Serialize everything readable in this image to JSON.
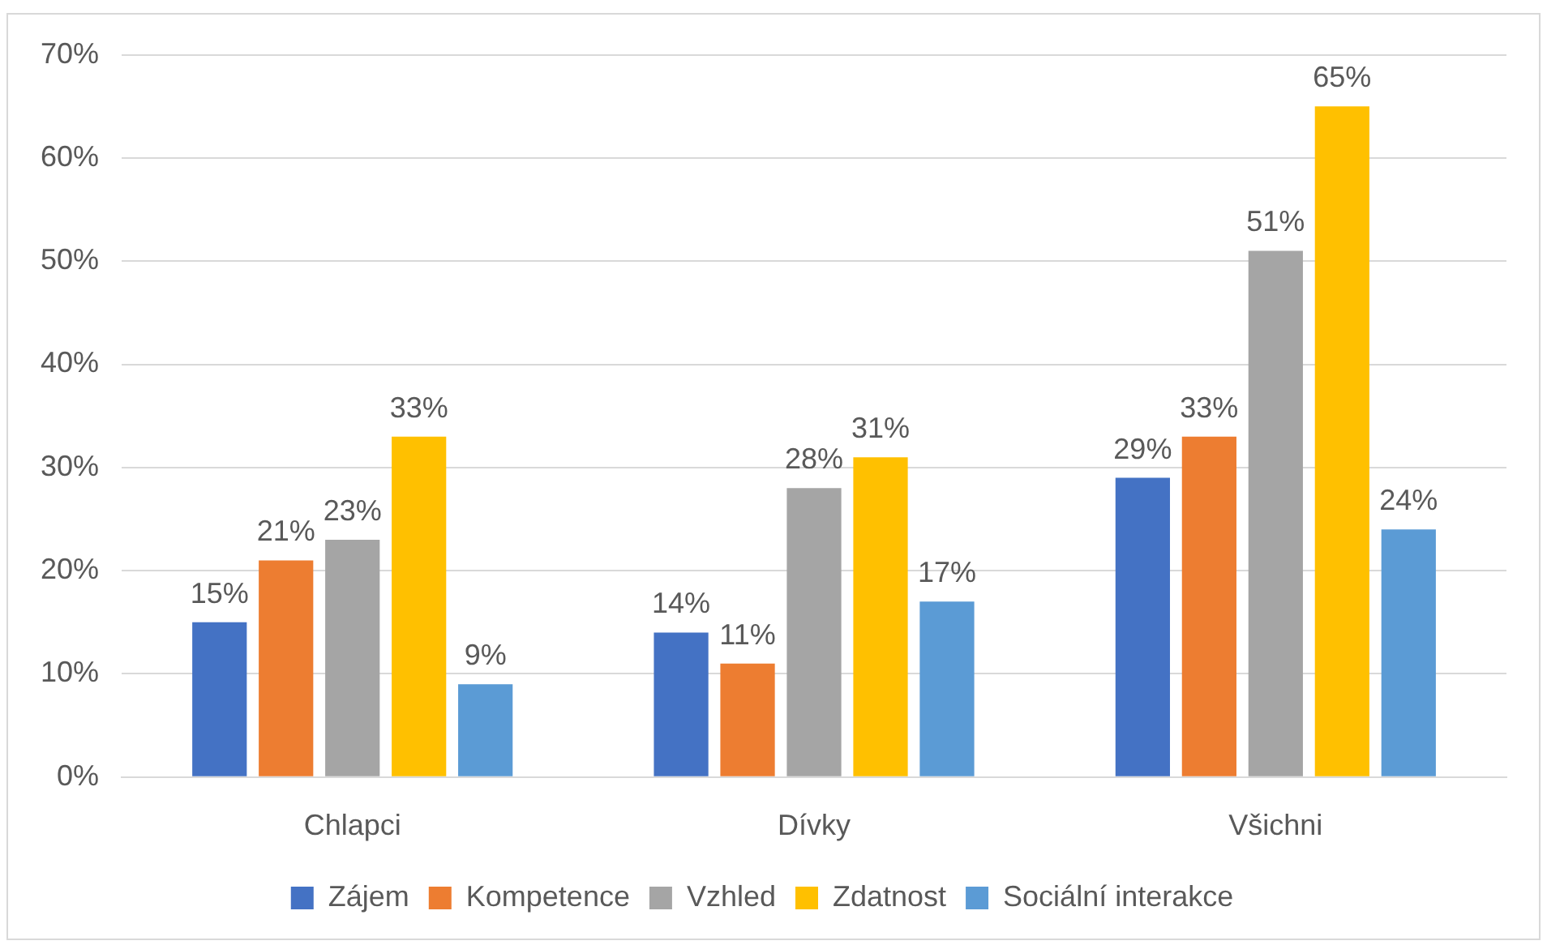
{
  "chart_data": {
    "type": "bar",
    "categories": [
      "Chlapci",
      "Dívky",
      "Všichni"
    ],
    "series": [
      {
        "name": "Zájem",
        "color": "#4472c4",
        "values": [
          15,
          14,
          29
        ],
        "value_labels": [
          "15%",
          "14%",
          "29%"
        ]
      },
      {
        "name": "Kompetence",
        "color": "#ed7d31",
        "values": [
          21,
          11,
          33
        ],
        "value_labels": [
          "21%",
          "11%",
          "33%"
        ]
      },
      {
        "name": "Vzhled",
        "color": "#a5a5a5",
        "values": [
          23,
          28,
          51
        ],
        "value_labels": [
          "23%",
          "28%",
          "51%"
        ]
      },
      {
        "name": "Zdatnost",
        "color": "#ffc000",
        "values": [
          33,
          31,
          65
        ],
        "value_labels": [
          "33%",
          "31%",
          "65%"
        ]
      },
      {
        "name": "Sociální interakce",
        "color": "#5b9bd5",
        "values": [
          9,
          17,
          24
        ],
        "value_labels": [
          "9%",
          "17%",
          "24%"
        ]
      }
    ],
    "ylim": [
      0,
      70
    ],
    "yticks": [
      {
        "value": 0,
        "label": "0%"
      },
      {
        "value": 10,
        "label": "10%"
      },
      {
        "value": 20,
        "label": "20%"
      },
      {
        "value": 30,
        "label": "30%"
      },
      {
        "value": 40,
        "label": "40%"
      },
      {
        "value": 50,
        "label": "50%"
      },
      {
        "value": 60,
        "label": "60%"
      },
      {
        "value": 70,
        "label": "70%"
      }
    ],
    "grid": "y",
    "legend": "bottom"
  }
}
